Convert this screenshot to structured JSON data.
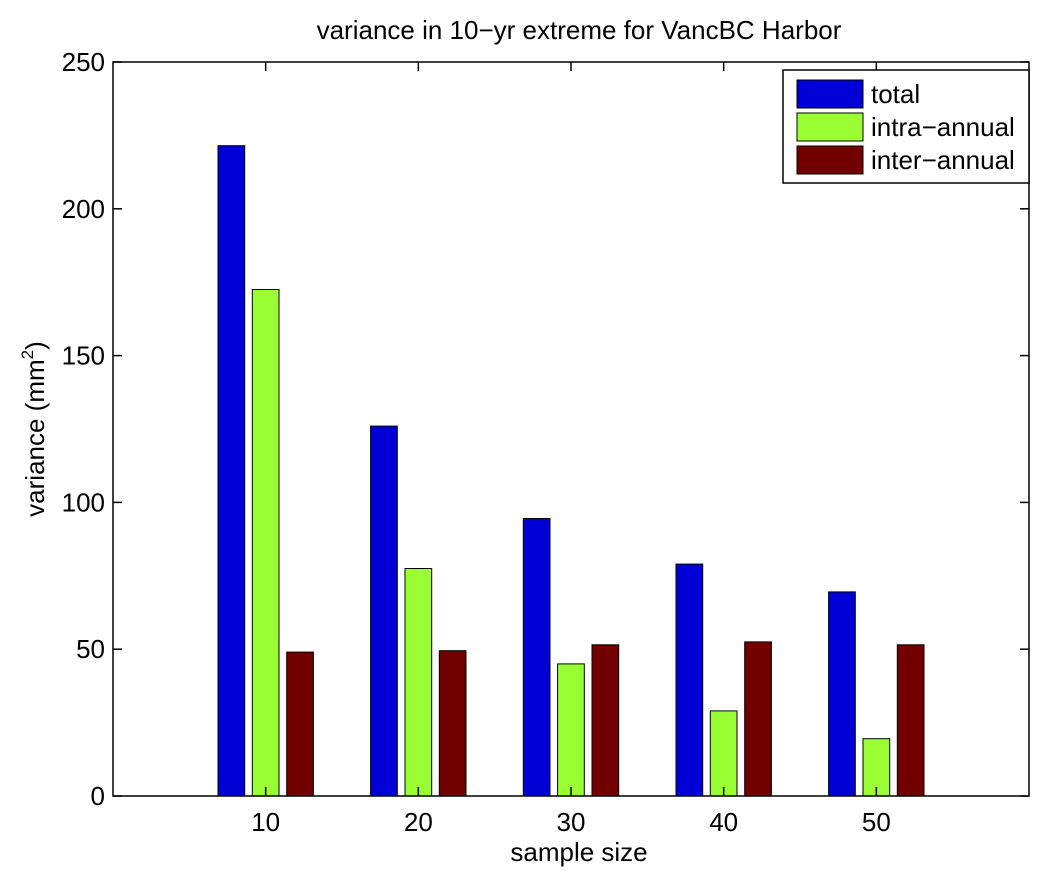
{
  "chart_data": {
    "type": "bar",
    "title": "variance in 10−yr extreme for VancBC Harbor",
    "xlabel": "sample size",
    "ylabel": "variance (mm",
    "ylabel_superscript": "2",
    "ylabel_close": ")",
    "categories": [
      "10",
      "20",
      "30",
      "40",
      "50"
    ],
    "xlim": [
      0,
      60
    ],
    "x_positions": [
      10,
      20,
      30,
      40,
      50
    ],
    "ylim": [
      0,
      250
    ],
    "yticks": [
      0,
      50,
      100,
      150,
      200,
      250
    ],
    "grid": false,
    "legend_position": "top-right",
    "series": [
      {
        "name": "total",
        "color": "#0000d6",
        "values": [
          221.5,
          126,
          94.5,
          79,
          69.5
        ]
      },
      {
        "name": "intra−annual",
        "color": "#99ff33",
        "values": [
          172.5,
          77.5,
          45,
          29,
          19.5
        ]
      },
      {
        "name": "inter−annual",
        "color": "#720000",
        "values": [
          49,
          49.5,
          51.5,
          52.5,
          51.5
        ]
      }
    ]
  }
}
